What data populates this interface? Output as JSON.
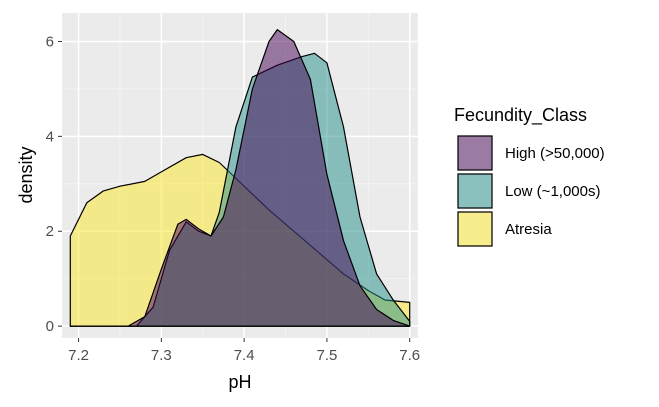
{
  "chart_data": {
    "type": "area",
    "subtype": "density",
    "xlabel": "pH",
    "ylabel": "density",
    "xlim": [
      7.18,
      7.61
    ],
    "ylim": [
      -0.25,
      6.6
    ],
    "x_ticks": [
      7.2,
      7.3,
      7.4,
      7.5,
      7.6
    ],
    "x_tick_labels": [
      "7.2",
      "7.3",
      "7.4",
      "7.5",
      "7.6"
    ],
    "y_ticks": [
      0,
      2,
      4,
      6
    ],
    "y_tick_labels": [
      "0",
      "2",
      "4",
      "6"
    ],
    "grid": true,
    "legend": {
      "title": "Fecundity_Class",
      "position": "right"
    },
    "series": [
      {
        "name": "Atresia",
        "color": "#FDE725",
        "points": [
          [
            7.19,
            1.9
          ],
          [
            7.21,
            2.6
          ],
          [
            7.23,
            2.85
          ],
          [
            7.25,
            2.95
          ],
          [
            7.28,
            3.05
          ],
          [
            7.3,
            3.25
          ],
          [
            7.33,
            3.55
          ],
          [
            7.35,
            3.62
          ],
          [
            7.37,
            3.45
          ],
          [
            7.4,
            2.95
          ],
          [
            7.43,
            2.45
          ],
          [
            7.46,
            2.0
          ],
          [
            7.49,
            1.55
          ],
          [
            7.52,
            1.1
          ],
          [
            7.55,
            0.75
          ],
          [
            7.57,
            0.55
          ],
          [
            7.6,
            0.5
          ]
        ]
      },
      {
        "name": "Low (~1,000s)",
        "color": "#21908C",
        "points": [
          [
            7.19,
            0.0
          ],
          [
            7.27,
            0.0
          ],
          [
            7.29,
            0.4
          ],
          [
            7.31,
            1.6
          ],
          [
            7.33,
            2.2
          ],
          [
            7.345,
            2.0
          ],
          [
            7.36,
            1.9
          ],
          [
            7.37,
            2.4
          ],
          [
            7.38,
            3.3
          ],
          [
            7.39,
            4.2
          ],
          [
            7.41,
            5.25
          ],
          [
            7.44,
            5.5
          ],
          [
            7.47,
            5.68
          ],
          [
            7.485,
            5.75
          ],
          [
            7.5,
            5.55
          ],
          [
            7.52,
            4.2
          ],
          [
            7.54,
            2.3
          ],
          [
            7.56,
            1.1
          ],
          [
            7.58,
            0.55
          ],
          [
            7.6,
            0.1
          ]
        ]
      },
      {
        "name": "High (>50,000)",
        "color": "#440154",
        "points": [
          [
            7.19,
            0.0
          ],
          [
            7.26,
            0.0
          ],
          [
            7.28,
            0.2
          ],
          [
            7.3,
            1.2
          ],
          [
            7.32,
            2.15
          ],
          [
            7.33,
            2.25
          ],
          [
            7.345,
            2.05
          ],
          [
            7.36,
            1.9
          ],
          [
            7.375,
            2.3
          ],
          [
            7.39,
            3.3
          ],
          [
            7.41,
            5.0
          ],
          [
            7.43,
            6.0
          ],
          [
            7.44,
            6.25
          ],
          [
            7.46,
            6.0
          ],
          [
            7.48,
            5.2
          ],
          [
            7.5,
            3.2
          ],
          [
            7.52,
            1.8
          ],
          [
            7.54,
            0.85
          ],
          [
            7.56,
            0.35
          ],
          [
            7.58,
            0.12
          ],
          [
            7.6,
            0.0
          ]
        ]
      }
    ]
  },
  "legend_order": [
    "High (>50,000)",
    "Low (~1,000s)",
    "Atresia"
  ]
}
